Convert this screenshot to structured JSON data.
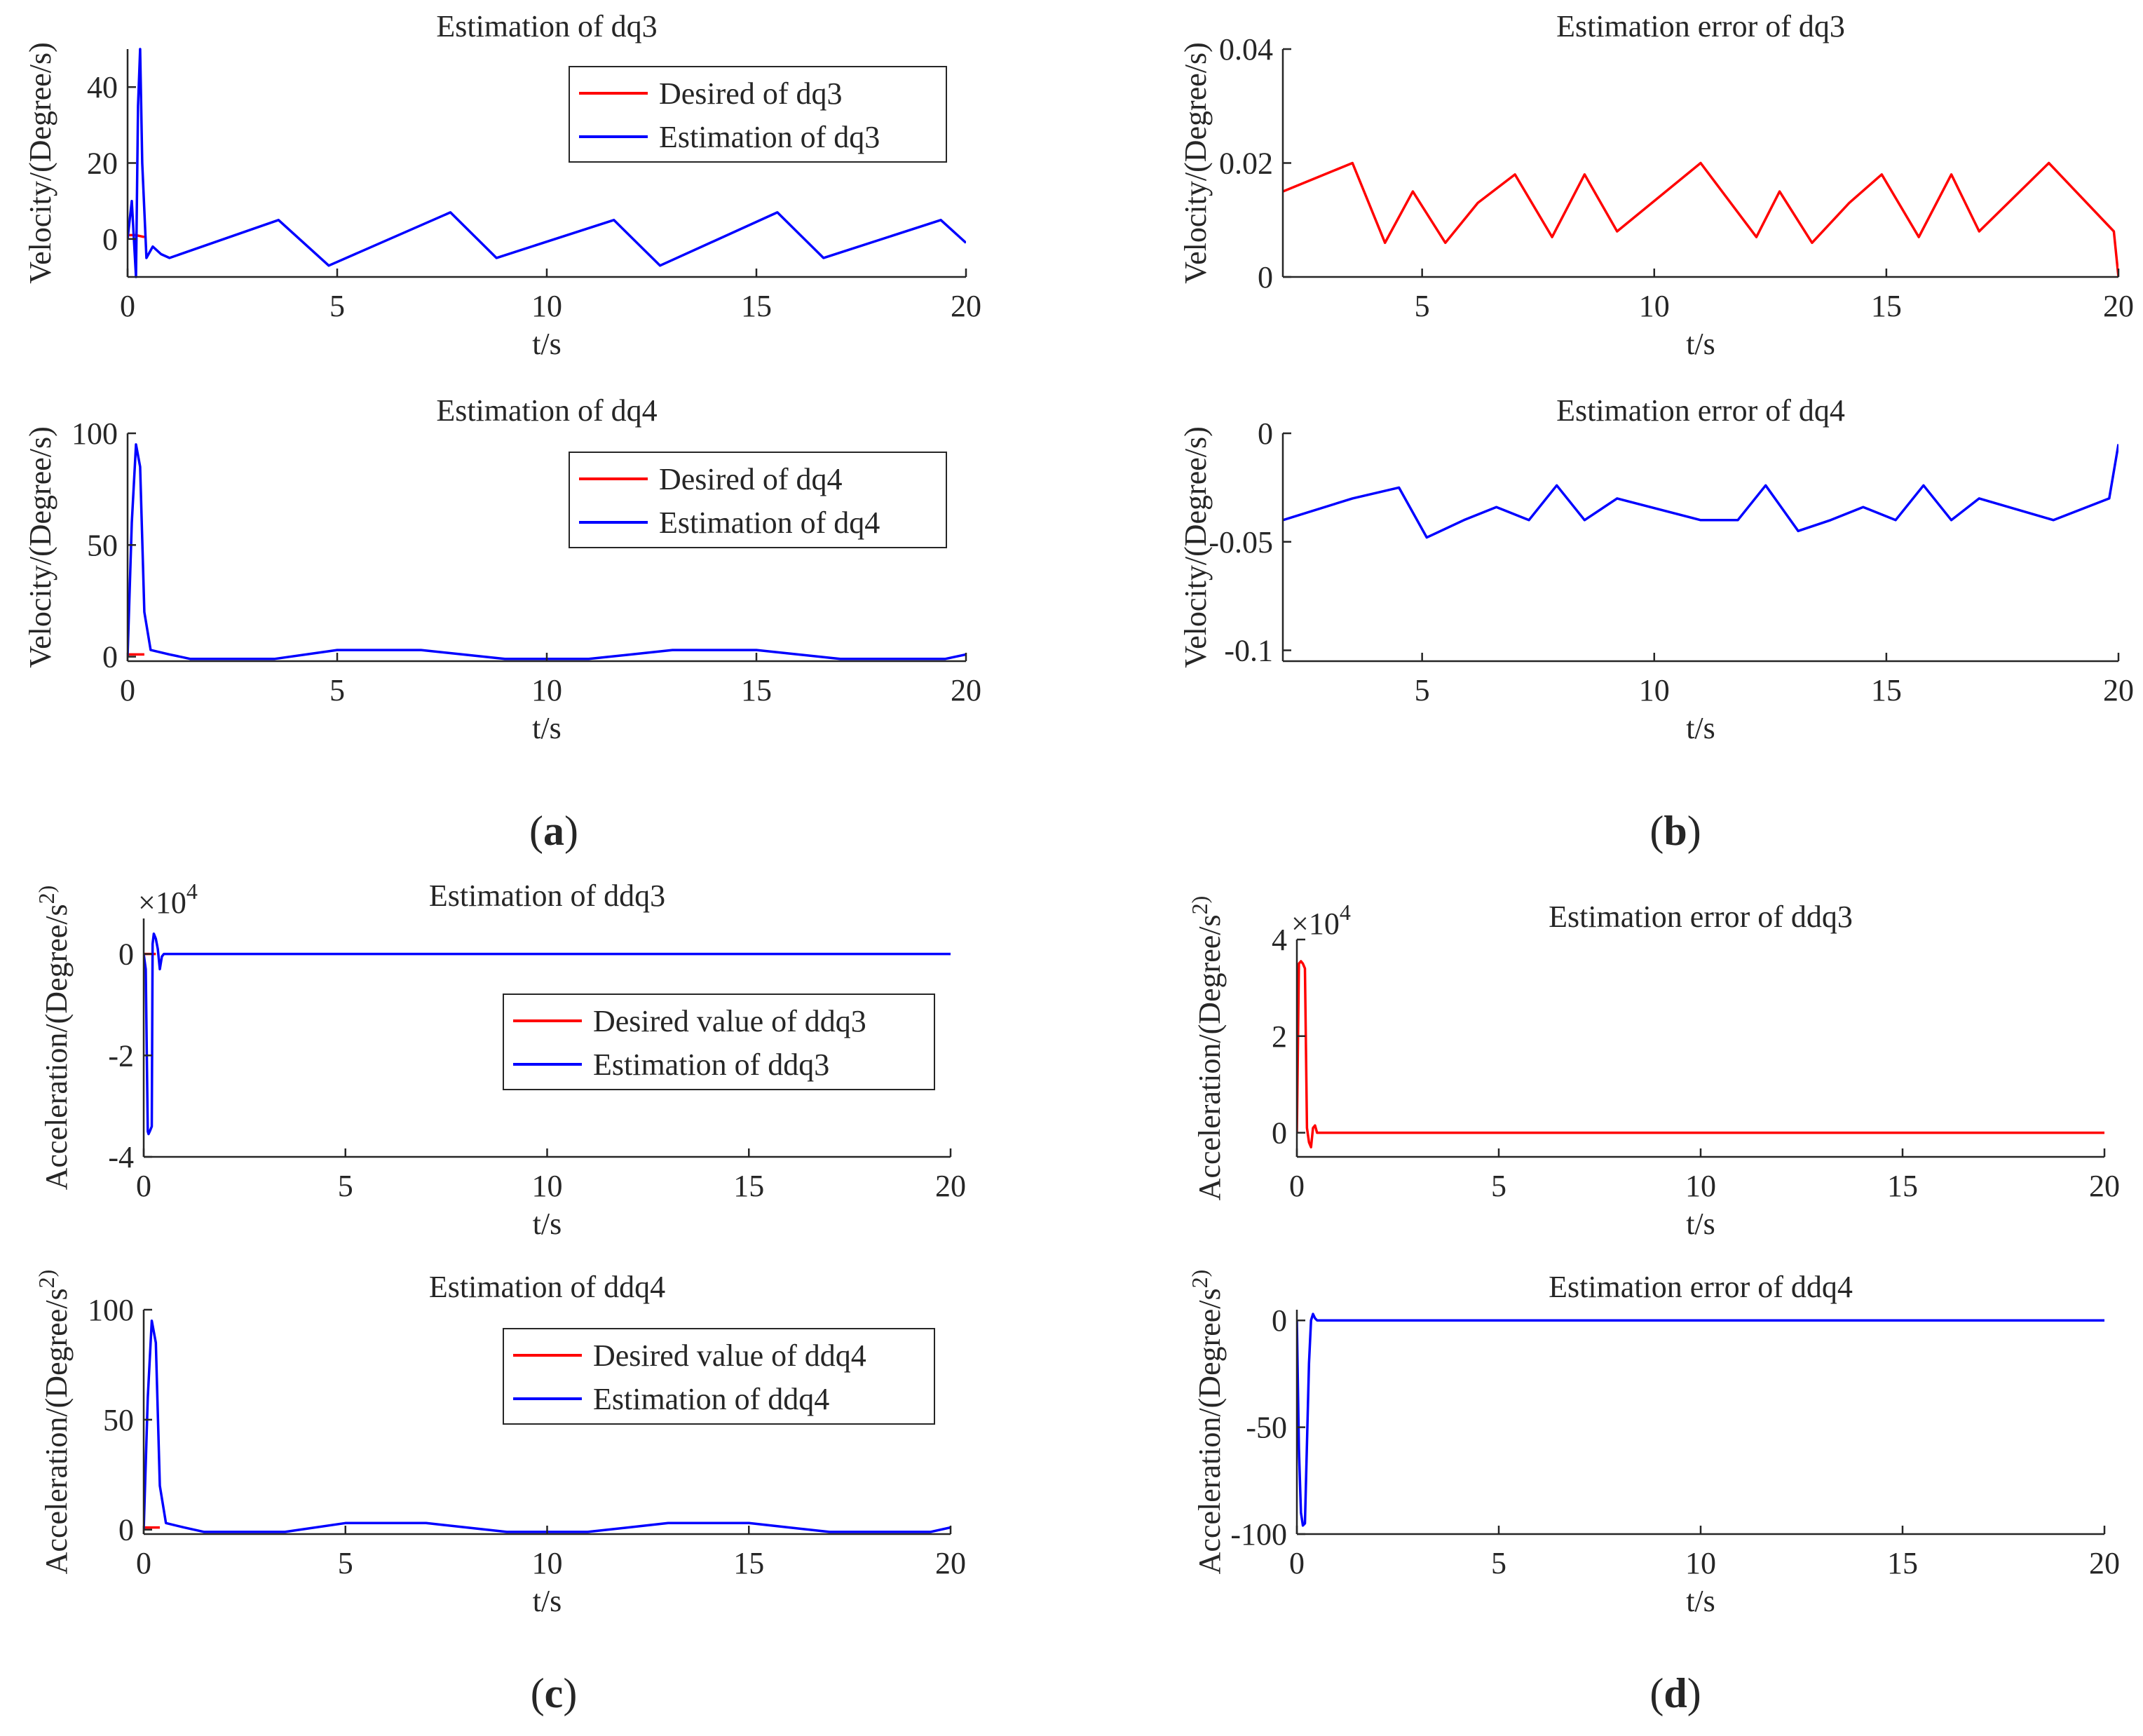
{
  "figure": {
    "panel_labels": [
      {
        "letter": "a",
        "text_open": "(",
        "text_close": ")"
      },
      {
        "letter": "b",
        "text_open": "(",
        "text_close": ")"
      },
      {
        "letter": "c",
        "text_open": "(",
        "text_close": ")"
      },
      {
        "letter": "d",
        "text_open": "(",
        "text_close": ")"
      }
    ],
    "colors": {
      "desired": "#ff0000",
      "estimation": "#0000ff",
      "axis": "#262626"
    }
  },
  "chart_data": [
    {
      "id": "a1",
      "type": "line",
      "title": "Estimation of dq3",
      "xlabel": "t/s",
      "ylabel": "Velocity/(Degree/s)",
      "xlim": [
        0,
        20
      ],
      "ylim": [
        -10,
        50
      ],
      "xticks": [
        0,
        5,
        10,
        15,
        20
      ],
      "yticks": [
        0,
        20,
        40
      ],
      "grid": false,
      "legend_position": "top-right",
      "series": [
        {
          "name": "Desired of dq3",
          "color": "#ff0000",
          "x": [
            0,
            0.2,
            0.4
          ],
          "y": [
            1,
            1,
            0.5
          ]
        },
        {
          "name": "Estimation of dq3",
          "color": "#0000ff",
          "x": [
            0,
            0.1,
            0.2,
            0.25,
            0.3,
            0.35,
            0.45,
            0.6,
            0.8,
            1,
            3.6,
            4.8,
            7.7,
            8.8,
            11.6,
            12.7,
            15.5,
            16.6,
            19.4,
            20
          ],
          "y": [
            0,
            10,
            -10,
            35,
            50,
            20,
            -5,
            -2,
            -4,
            -5,
            5,
            -7,
            7,
            -5,
            5,
            -7,
            7,
            -5,
            5,
            -1
          ]
        }
      ]
    },
    {
      "id": "a2",
      "type": "line",
      "title": "Estimation of dq4",
      "xlabel": "t/s",
      "ylabel": "Velocity/(Degree/s)",
      "xlim": [
        0,
        20
      ],
      "ylim": [
        -2,
        100
      ],
      "xticks": [
        0,
        5,
        10,
        15,
        20
      ],
      "yticks": [
        0,
        50,
        100
      ],
      "grid": false,
      "legend_position": "top-right",
      "series": [
        {
          "name": "Desired of dq4",
          "color": "#ff0000",
          "x": [
            0,
            0.2,
            0.4
          ],
          "y": [
            1,
            1,
            1
          ]
        },
        {
          "name": "Estimation of dq4",
          "color": "#0000ff",
          "x": [
            0,
            0.1,
            0.2,
            0.3,
            0.4,
            0.55,
            1,
            1.5,
            3.5,
            5,
            7,
            9,
            11,
            13,
            15,
            17,
            19.5,
            20
          ],
          "y": [
            0,
            60,
            95,
            85,
            20,
            3,
            1,
            -1,
            -1,
            3,
            3,
            -1,
            -1,
            3,
            3,
            -1,
            -1,
            1
          ]
        }
      ]
    },
    {
      "id": "b1",
      "type": "line",
      "title": "Estimation error of dq3",
      "xlabel": "t/s",
      "ylabel": "Velocity/(Degree/s)",
      "xlim": [
        2,
        20
      ],
      "ylim": [
        0,
        0.04
      ],
      "xticks": [
        5,
        10,
        15,
        20
      ],
      "yticks": [
        0,
        0.02,
        0.04
      ],
      "grid": false,
      "series": [
        {
          "color": "#ff0000",
          "x": [
            2,
            3.5,
            4.2,
            4.8,
            5.5,
            6.2,
            7,
            7.8,
            8.5,
            9.2,
            11,
            12.2,
            12.7,
            13.4,
            14.2,
            14.9,
            15.7,
            16.4,
            17,
            18.5,
            19.9,
            20
          ],
          "y": [
            0.015,
            0.02,
            0.006,
            0.015,
            0.006,
            0.013,
            0.018,
            0.007,
            0.018,
            0.008,
            0.02,
            0.007,
            0.015,
            0.006,
            0.013,
            0.018,
            0.007,
            0.018,
            0.008,
            0.02,
            0.008,
            0
          ]
        }
      ]
    },
    {
      "id": "b2",
      "type": "line",
      "title": "Estimation error of dq4",
      "xlabel": "t/s",
      "ylabel": "Velocity/(Degree/s)",
      "xlim": [
        2,
        20
      ],
      "ylim": [
        -0.105,
        0
      ],
      "xticks": [
        5,
        10,
        15,
        20
      ],
      "yticks": [
        -0.1,
        -0.05,
        0
      ],
      "grid": false,
      "series": [
        {
          "color": "#0000ff",
          "x": [
            2,
            3.5,
            4.5,
            5.1,
            5.9,
            6.6,
            7.3,
            7.9,
            8.5,
            9.2,
            11,
            11.8,
            12.4,
            13.1,
            13.8,
            14.5,
            15.2,
            15.8,
            16.4,
            17,
            18.6,
            19.8,
            20
          ],
          "y": [
            -0.04,
            -0.03,
            -0.025,
            -0.048,
            -0.04,
            -0.034,
            -0.04,
            -0.024,
            -0.04,
            -0.03,
            -0.04,
            -0.04,
            -0.024,
            -0.045,
            -0.04,
            -0.034,
            -0.04,
            -0.024,
            -0.04,
            -0.03,
            -0.04,
            -0.03,
            -0.005
          ]
        }
      ]
    },
    {
      "id": "c1",
      "type": "line",
      "title": "Estimation of ddq3",
      "xlabel": "t/s",
      "ylabel": "Acceleration/(Degree/s^2)",
      "multiplier_base": "×10",
      "multiplier_exp": "4",
      "xlim": [
        0,
        20
      ],
      "ylim": [
        -4,
        0.7
      ],
      "xticks": [
        0,
        5,
        10,
        15,
        20
      ],
      "yticks": [
        -4,
        -2,
        0
      ],
      "grid": false,
      "legend_position": "center-right",
      "series": [
        {
          "name": "Desired value of ddq3",
          "color": "#ff0000",
          "x": [
            0,
            0.3
          ],
          "y": [
            0,
            0
          ]
        },
        {
          "name": "Estimation of ddq3",
          "color": "#0000ff",
          "x": [
            0,
            0.05,
            0.1,
            0.12,
            0.15,
            0.2,
            0.22,
            0.25,
            0.3,
            0.35,
            0.4,
            0.45,
            0.5,
            0.6,
            20
          ],
          "y": [
            0,
            -0.3,
            -3.5,
            -3.55,
            -3.5,
            -3.4,
            0.2,
            0.4,
            0.3,
            0.1,
            -0.3,
            -0.05,
            0,
            0,
            0
          ]
        }
      ]
    },
    {
      "id": "c2",
      "type": "line",
      "title": "Estimation of ddq4",
      "xlabel": "t/s",
      "ylabel": "Acceleration/(Degree/s^2)",
      "xlim": [
        0,
        20
      ],
      "ylim": [
        -2,
        100
      ],
      "xticks": [
        0,
        5,
        10,
        15,
        20
      ],
      "yticks": [
        0,
        50,
        100
      ],
      "grid": false,
      "legend_position": "top-right",
      "series": [
        {
          "name": "Desired value of ddq4",
          "color": "#ff0000",
          "x": [
            0,
            0.2,
            0.4
          ],
          "y": [
            1,
            1,
            1
          ]
        },
        {
          "name": "Estimation of ddq4",
          "color": "#0000ff",
          "x": [
            0,
            0.1,
            0.2,
            0.3,
            0.4,
            0.55,
            1,
            1.5,
            3.5,
            5,
            7,
            9,
            11,
            13,
            15,
            17,
            19.5,
            20
          ],
          "y": [
            0,
            60,
            95,
            85,
            20,
            3,
            1,
            -1,
            -1,
            3,
            3,
            -1,
            -1,
            3,
            3,
            -1,
            -1,
            1
          ]
        }
      ]
    },
    {
      "id": "d1",
      "type": "line",
      "title": "Estimation error of ddq3",
      "xlabel": "t/s",
      "ylabel": "Acceleration/(Degree/s^2)",
      "multiplier_base": "×10",
      "multiplier_exp": "4",
      "xlim": [
        0,
        20
      ],
      "ylim": [
        -0.5,
        4
      ],
      "xticks": [
        0,
        5,
        10,
        15,
        20
      ],
      "yticks": [
        0,
        2,
        4
      ],
      "grid": false,
      "series": [
        {
          "color": "#ff0000",
          "x": [
            0,
            0.05,
            0.1,
            0.15,
            0.2,
            0.25,
            0.3,
            0.35,
            0.4,
            0.45,
            0.5,
            0.6,
            20
          ],
          "y": [
            0,
            3.5,
            3.55,
            3.5,
            3.4,
            0.1,
            -0.2,
            -0.3,
            0.1,
            0.15,
            0,
            0,
            0
          ]
        }
      ]
    },
    {
      "id": "d2",
      "type": "line",
      "title": "Estimation error of ddq4",
      "xlabel": "t/s",
      "ylabel": "Acceleration/(Degree/s^2)",
      "xlim": [
        0,
        20
      ],
      "ylim": [
        -100,
        5
      ],
      "xticks": [
        0,
        5,
        10,
        15,
        20
      ],
      "yticks": [
        -100,
        -50,
        0
      ],
      "grid": false,
      "series": [
        {
          "color": "#0000ff",
          "x": [
            0,
            0.05,
            0.1,
            0.15,
            0.2,
            0.3,
            0.35,
            0.4,
            0.45,
            0.5,
            0.6,
            20
          ],
          "y": [
            0,
            -60,
            -90,
            -96,
            -95,
            -20,
            0,
            3,
            1,
            0,
            0,
            0
          ]
        }
      ]
    }
  ]
}
